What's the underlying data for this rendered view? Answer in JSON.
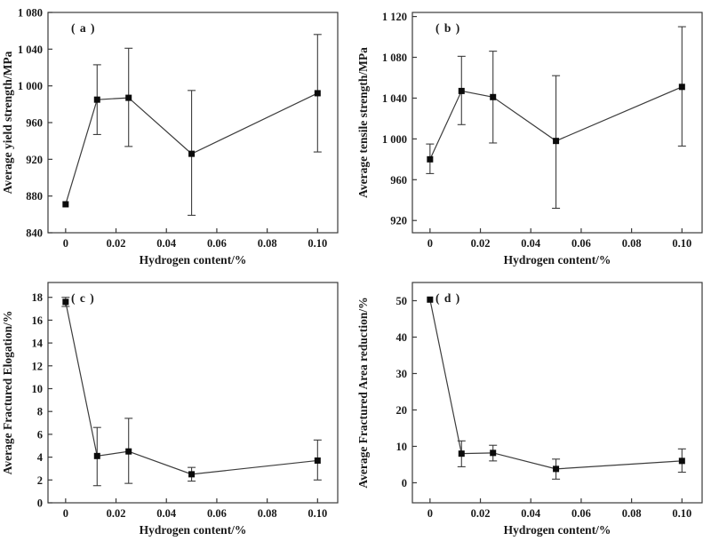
{
  "colors": {
    "axis": "#3a3a3a",
    "line": "#3c3c3c",
    "marker": "#0b0b0b",
    "text": "#1a1a1a",
    "background": "#ffffff"
  },
  "chart_data": [
    {
      "id": "a",
      "type": "line",
      "panel_label": "( a )",
      "xlabel": "Hydrogen content/%",
      "ylabel": "Average yield strength/MPa",
      "error_bars": true,
      "x": [
        0,
        0.0125,
        0.025,
        0.05,
        0.1
      ],
      "y": [
        871,
        985,
        987,
        926,
        992
      ],
      "err_low": [
        871,
        947,
        934,
        859,
        928
      ],
      "err_high": [
        871,
        1023,
        1041,
        995,
        1056
      ],
      "xlim": [
        -0.007,
        0.108
      ],
      "ylim": [
        840,
        1080
      ],
      "xticks": [
        0,
        0.02,
        0.04,
        0.06,
        0.08,
        0.1
      ],
      "xtick_labels": [
        "0",
        "0.02",
        "0.04",
        "0.06",
        "0.08",
        "0.10"
      ],
      "yticks": [
        840,
        880,
        920,
        960,
        1000,
        1040,
        1080
      ],
      "ytick_labels": [
        "840",
        "880",
        "920",
        "960",
        "1 000",
        "1 040",
        "1 080"
      ]
    },
    {
      "id": "b",
      "type": "line",
      "panel_label": "( b )",
      "xlabel": "Hydrogen content/%",
      "ylabel": "Average tensile strength/MPa",
      "error_bars": true,
      "x": [
        0,
        0.0125,
        0.025,
        0.05,
        0.1
      ],
      "y": [
        980,
        1047,
        1041,
        998,
        1051
      ],
      "err_low": [
        966,
        1014,
        996,
        932,
        993
      ],
      "err_high": [
        995,
        1081,
        1086,
        1062,
        1110
      ],
      "xlim": [
        -0.007,
        0.108
      ],
      "ylim": [
        908,
        1124
      ],
      "xticks": [
        0,
        0.02,
        0.04,
        0.06,
        0.08,
        0.1
      ],
      "xtick_labels": [
        "0",
        "0.02",
        "0.04",
        "0.06",
        "0.08",
        "0.10"
      ],
      "yticks": [
        920,
        960,
        1000,
        1040,
        1080,
        1120
      ],
      "ytick_labels": [
        "920",
        "960",
        "1 000",
        "1 040",
        "1 080",
        "1 120"
      ]
    },
    {
      "id": "c",
      "type": "line",
      "panel_label": "( c )",
      "xlabel": "Hydrogen content/%",
      "ylabel": "Average Fractured Elogation/%",
      "error_bars": true,
      "x": [
        0,
        0.0125,
        0.025,
        0.05,
        0.1
      ],
      "y": [
        17.6,
        4.1,
        4.5,
        2.5,
        3.7
      ],
      "err_low": [
        17.2,
        1.5,
        1.7,
        1.9,
        2.0
      ],
      "err_high": [
        18.0,
        6.6,
        7.4,
        3.1,
        5.5
      ],
      "xlim": [
        -0.007,
        0.108
      ],
      "ylim": [
        0,
        19.3
      ],
      "xticks": [
        0,
        0.02,
        0.04,
        0.06,
        0.08,
        0.1
      ],
      "xtick_labels": [
        "0",
        "0.02",
        "0.04",
        "0.06",
        "0.08",
        "0.10"
      ],
      "yticks": [
        0,
        2,
        4,
        6,
        8,
        10,
        12,
        14,
        16,
        18
      ],
      "ytick_labels": [
        "0",
        "2",
        "4",
        "6",
        "8",
        "10",
        "12",
        "14",
        "16",
        "18"
      ]
    },
    {
      "id": "d",
      "type": "line",
      "panel_label": "( d )",
      "xlabel": "Hydrogen content/%",
      "ylabel": "Average Fractured Area reduction/%",
      "error_bars": true,
      "x": [
        0,
        0.0125,
        0.025,
        0.05,
        0.1
      ],
      "y": [
        50.3,
        8.0,
        8.2,
        3.8,
        6.0
      ],
      "err_low": [
        50.3,
        4.4,
        6.0,
        1.0,
        2.9
      ],
      "err_high": [
        50.3,
        11.5,
        10.3,
        6.5,
        9.3
      ],
      "xlim": [
        -0.007,
        0.108
      ],
      "ylim": [
        -5.5,
        55
      ],
      "xticks": [
        0,
        0.02,
        0.04,
        0.06,
        0.08,
        0.1
      ],
      "xtick_labels": [
        "0",
        "0.02",
        "0.04",
        "0.06",
        "0.08",
        "0.10"
      ],
      "yticks": [
        0,
        10,
        20,
        30,
        40,
        50
      ],
      "ytick_labels": [
        "0",
        "10",
        "20",
        "30",
        "40",
        "50"
      ]
    }
  ]
}
